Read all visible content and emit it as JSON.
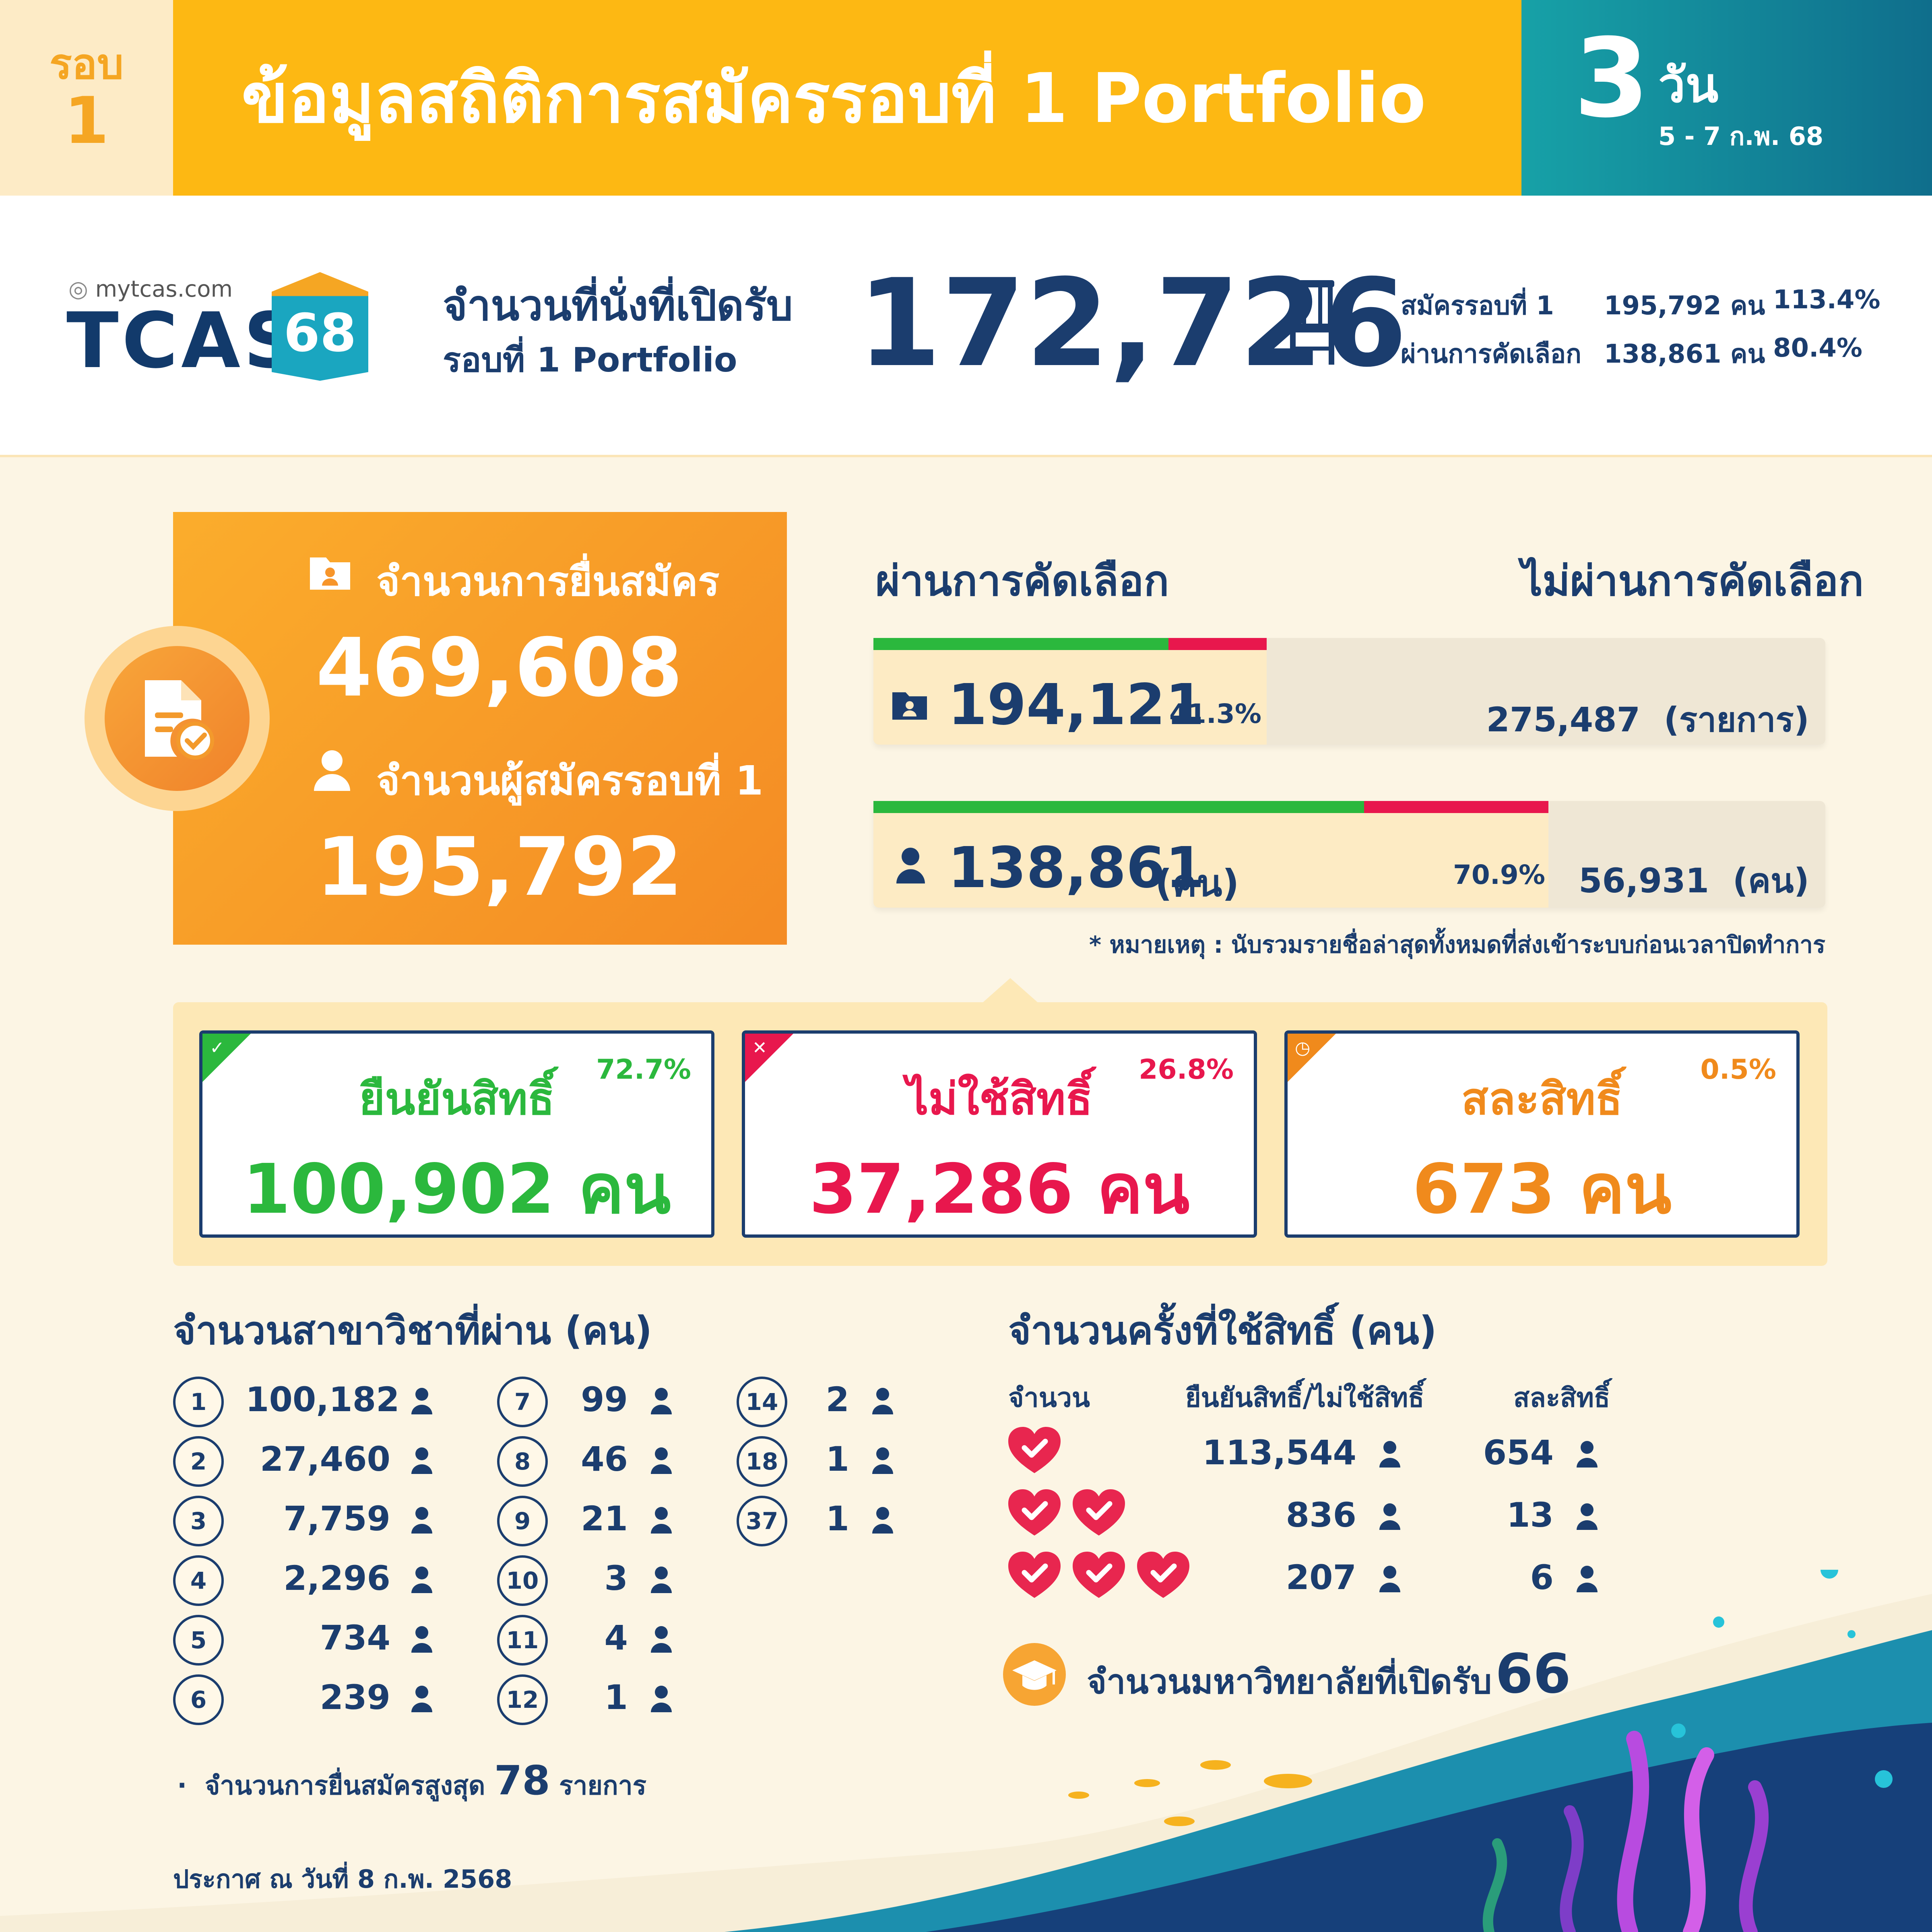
{
  "header": {
    "round_word": "รอบ",
    "round_number": "1",
    "title": "ข้อมูลสถิติการสมัครรอบที่ 1 Portfolio",
    "days_number": "3",
    "days_unit": "วัน",
    "date_range": "5 - 7 ก.พ. 68"
  },
  "brand": {
    "site": "mytcas.com",
    "logo_text": "TCAS",
    "logo_number": "68"
  },
  "seats": {
    "label_line1": "จำนวนที่นั่งที่เปิดรับ",
    "label_line2": "รอบที่ 1 Portfolio",
    "value": "172,726",
    "stats": [
      {
        "label": "สมัครรอบที่ 1",
        "count": "195,792 คน",
        "percent": "113.4%"
      },
      {
        "label": "ผ่านการคัดเลือก",
        "count": "138,861 คน",
        "percent": "80.4%"
      }
    ]
  },
  "summary": {
    "applications_label": "จำนวนการยื่นสมัคร",
    "applications_value": "469,608",
    "applicants_label": "จำนวนผู้สมัครรอบที่ 1",
    "applicants_value": "195,792"
  },
  "results": {
    "pass_heading": "ผ่านการคัดเลือก",
    "fail_heading": "ไม่ผ่านการคัดเลือก",
    "rows": [
      {
        "pass_value": "194,121",
        "pass_unit": "",
        "percent": "41.3%",
        "percent_value": 41.3,
        "confirm_share_pct": 75,
        "fail_value": "275,487",
        "fail_unit": "(รายการ)"
      },
      {
        "pass_value": "138,861",
        "pass_unit": "(คน)",
        "percent": "70.9%",
        "percent_value": 70.9,
        "confirm_share_pct": 72.7,
        "fail_value": "56,931",
        "fail_unit": "(คน)"
      }
    ],
    "note": "* หมายเหตุ : นับรวมรายชื่อล่าสุดทั้งหมดที่ส่งเข้าระบบก่อนเวลาปิดทำการ"
  },
  "status": [
    {
      "title": "ยืนยันสิทธิ์",
      "value": "100,902 คน",
      "percent": "72.7%",
      "color": "#2bb83d",
      "icon": "check-icon"
    },
    {
      "title": "ไม่ใช้สิทธิ์",
      "value": "37,286 คน",
      "percent": "26.8%",
      "color": "#e8174d",
      "icon": "x-icon"
    },
    {
      "title": "สละสิทธิ์",
      "value": "673 คน",
      "percent": "0.5%",
      "color": "#f08a1c",
      "icon": "clock-icon"
    }
  ],
  "majors": {
    "heading": "จำนวนสาขาวิชาที่ผ่าน (คน)",
    "col1": [
      {
        "n": "1",
        "v": "100,182"
      },
      {
        "n": "2",
        "v": "27,460"
      },
      {
        "n": "3",
        "v": "7,759"
      },
      {
        "n": "4",
        "v": "2,296"
      },
      {
        "n": "5",
        "v": "734"
      },
      {
        "n": "6",
        "v": "239"
      }
    ],
    "col2": [
      {
        "n": "7",
        "v": "99"
      },
      {
        "n": "8",
        "v": "46"
      },
      {
        "n": "9",
        "v": "21"
      },
      {
        "n": "10",
        "v": "3"
      },
      {
        "n": "11",
        "v": "4"
      },
      {
        "n": "12",
        "v": "1"
      }
    ],
    "col3": [
      {
        "n": "14",
        "v": "2"
      },
      {
        "n": "18",
        "v": "1"
      },
      {
        "n": "37",
        "v": "1"
      }
    ],
    "max_label": "จำนวนการยื่นสมัครสูงสุด",
    "max_value": "78",
    "max_unit": "รายการ"
  },
  "usage": {
    "heading": "จำนวนครั้งที่ใช้สิทธิ์ (คน)",
    "col_count": "จำนวน",
    "col_confirm": "ยืนยันสิทธิ์/ไม่ใช้สิทธิ์",
    "col_waive": "สละสิทธิ์",
    "rows": [
      {
        "hearts": 1,
        "confirm": "113,544",
        "waive": "654"
      },
      {
        "hearts": 2,
        "confirm": "836",
        "waive": "13"
      },
      {
        "hearts": 3,
        "confirm": "207",
        "waive": "6"
      }
    ]
  },
  "universities": {
    "label": "จำนวนมหาวิทยาลัยที่เปิดรับ",
    "value": "66"
  },
  "footer": "ประกาศ ณ วันที่ 8 ก.พ. 2568"
}
